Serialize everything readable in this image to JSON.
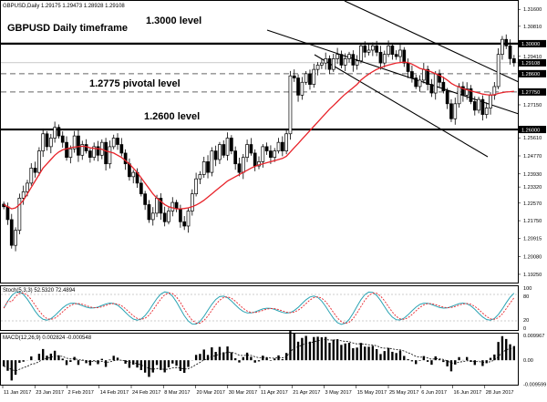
{
  "header": {
    "symbol_info": "GBPUSD,Daily  1.29175 1.29473 1.28928 1.29108"
  },
  "annotations": {
    "chart_title": "GBPUSD Daily timeframe",
    "level_1300": "1.3000 level",
    "level_12775": "1.2775 pivotal level",
    "level_1260": "1.2600 level"
  },
  "colors": {
    "bull_body": "#ffffff",
    "bear_body": "#000000",
    "ma_line": "#e8232a",
    "stoch_main": "#2aa3b3",
    "stoch_signal": "#e8232a",
    "channel": "#000000",
    "price_label_bg": "#000000"
  },
  "chart_data": [
    {
      "type": "candlestick",
      "panel": "price",
      "ylim": [
        1.1895,
        1.3195
      ],
      "y_ticks": [
        "1.31600",
        "1.30810",
        "1.30000",
        "1.29410",
        "1.28600",
        "1.27750",
        "1.27150",
        "1.26000",
        "1.25610",
        "1.24770",
        "1.23930",
        "1.23320",
        "1.22570",
        "1.21750",
        "1.20915",
        "1.20080",
        "1.19250"
      ],
      "price_labels": [
        "1.30000",
        "1.29108",
        "1.28600",
        "1.27750",
        "1.26000"
      ],
      "x_labels": [
        "11 Jan 2017",
        "23 Jan 2017",
        "2 Feb 2017",
        "14 Feb 2017",
        "24 Feb 2017",
        "8 Mar 2017",
        "20 Mar 2017",
        "30 Mar 2017",
        "11 Apr 2017",
        "21 Apr 2017",
        "3 May 2017",
        "15 May 2017",
        "25 May 2017",
        "6 Jun 2017",
        "16 Jun 2017",
        "28 Jun 2017"
      ],
      "close": [
        1.224,
        1.218,
        1.206,
        1.213,
        1.228,
        1.231,
        1.235,
        1.242,
        1.24,
        1.25,
        1.258,
        1.252,
        1.256,
        1.261,
        1.257,
        1.254,
        1.247,
        1.251,
        1.257,
        1.248,
        1.253,
        1.25,
        1.247,
        1.252,
        1.248,
        1.254,
        1.244,
        1.252,
        1.256,
        1.253,
        1.249,
        1.244,
        1.238,
        1.24,
        1.235,
        1.23,
        1.225,
        1.218,
        1.221,
        1.228,
        1.221,
        1.217,
        1.222,
        1.226,
        1.223,
        1.217,
        1.215,
        1.222,
        1.23,
        1.237,
        1.239,
        1.245,
        1.24,
        1.25,
        1.246,
        1.253,
        1.248,
        1.256,
        1.25,
        1.244,
        1.24,
        1.247,
        1.253,
        1.249,
        1.243,
        1.245,
        1.252,
        1.25,
        1.247,
        1.25,
        1.254,
        1.25,
        1.258,
        1.285,
        1.284,
        1.276,
        1.282,
        1.286,
        1.281,
        1.288,
        1.29,
        1.291,
        1.293,
        1.288,
        1.293,
        1.295,
        1.29,
        1.293,
        1.295,
        1.29,
        1.292,
        1.299,
        1.296,
        1.297,
        1.299,
        1.296,
        1.291,
        1.295,
        1.299,
        1.295,
        1.294,
        1.297,
        1.291,
        1.287,
        1.284,
        1.28,
        1.283,
        1.288,
        1.281,
        1.277,
        1.286,
        1.282,
        1.278,
        1.272,
        1.265,
        1.272,
        1.28,
        1.276,
        1.279,
        1.273,
        1.269,
        1.274,
        1.267,
        1.27,
        1.276,
        1.28,
        1.295,
        1.302,
        1.299,
        1.293,
        1.2911
      ],
      "ma": [
        1.225,
        1.224,
        1.223,
        1.2235,
        1.225,
        1.227,
        1.23,
        1.233,
        1.236,
        1.239,
        1.242,
        1.244,
        1.246,
        1.248,
        1.2495,
        1.2505,
        1.251,
        1.2515,
        1.2518,
        1.252,
        1.2522,
        1.252,
        1.2515,
        1.2512,
        1.251,
        1.2508,
        1.25,
        1.2495,
        1.249,
        1.248,
        1.247,
        1.2455,
        1.244,
        1.242,
        1.24,
        1.2375,
        1.235,
        1.2325,
        1.23,
        1.228,
        1.2265,
        1.225,
        1.224,
        1.2235,
        1.223,
        1.223,
        1.2232,
        1.2235,
        1.224,
        1.2248,
        1.2258,
        1.227,
        1.2285,
        1.23,
        1.2315,
        1.233,
        1.2345,
        1.236,
        1.237,
        1.238,
        1.239,
        1.24,
        1.241,
        1.242,
        1.2428,
        1.2435,
        1.244,
        1.2445,
        1.245,
        1.2455,
        1.246,
        1.2465,
        1.2475,
        1.2495,
        1.2515,
        1.2535,
        1.2555,
        1.2575,
        1.2595,
        1.2615,
        1.2635,
        1.2655,
        1.2675,
        1.2695,
        1.2712,
        1.273,
        1.2748,
        1.2765,
        1.278,
        1.2795,
        1.281,
        1.283,
        1.2845,
        1.2858,
        1.287,
        1.288,
        1.2888,
        1.2895,
        1.29,
        1.2905,
        1.291,
        1.2912,
        1.2914,
        1.2912,
        1.2905,
        1.2895,
        1.2885,
        1.288,
        1.2875,
        1.2868,
        1.286,
        1.2852,
        1.2842,
        1.283,
        1.2815,
        1.2805,
        1.2798,
        1.279,
        1.2785,
        1.278,
        1.2775,
        1.277,
        1.2765,
        1.2762,
        1.276,
        1.2762,
        1.2768,
        1.2772,
        1.2775,
        1.2776,
        1.2778
      ]
    },
    {
      "type": "line",
      "panel": "stochastic",
      "label": "Stoch(5,3,3) 52.5320 72.4894",
      "ylim": [
        0,
        100
      ],
      "y_ticks": [
        "100",
        "80",
        "20",
        "0"
      ],
      "levels": [
        80,
        20
      ]
    },
    {
      "type": "bar",
      "panel": "macd",
      "label": "MACD(12,26,9) 0.002824 -0.000548",
      "ylim": [
        -0.0095,
        0.01
      ],
      "y_ticks": [
        "0.009967",
        "0.00",
        "-0.009599"
      ]
    }
  ]
}
